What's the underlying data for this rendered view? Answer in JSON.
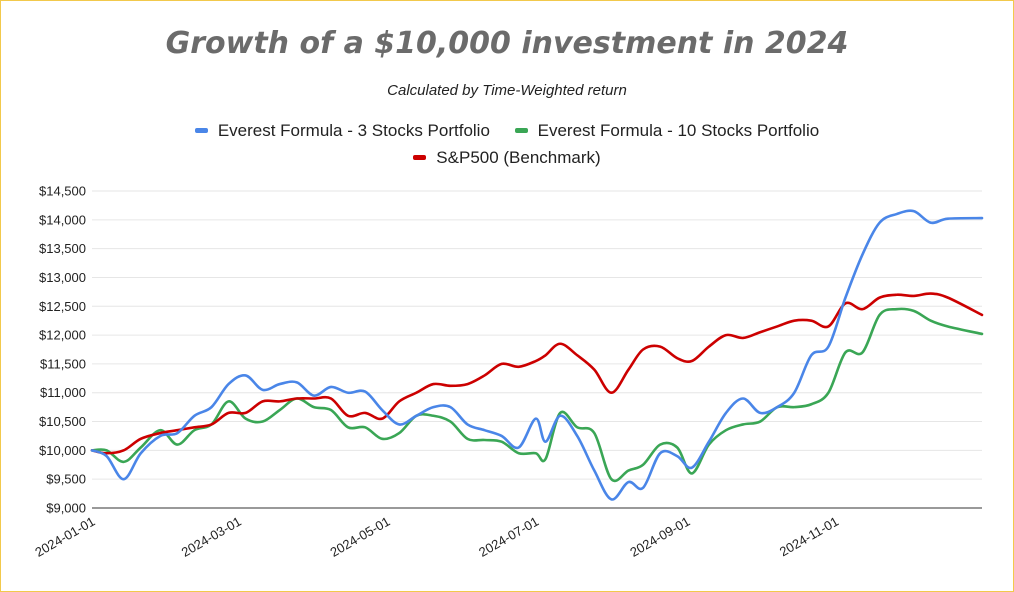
{
  "chart_data": {
    "type": "line",
    "title": "Growth of a $10,000 investment in 2024",
    "subtitle": "Calculated by Time-Weighted return",
    "xlabel": "",
    "ylabel": "",
    "ylim": [
      9000,
      14500
    ],
    "y_ticks": [
      9000,
      9500,
      10000,
      10500,
      11000,
      11500,
      12000,
      12500,
      13000,
      13500,
      14000,
      14500
    ],
    "y_tick_labels": [
      "$9,000",
      "$9,500",
      "$10,000",
      "$10,500",
      "$11,000",
      "$11,500",
      "$12,000",
      "$12,500",
      "$13,000",
      "$13,500",
      "$14,000",
      "$14,500"
    ],
    "x_range": [
      "2024-01-01",
      "2024-12-31"
    ],
    "x_ticks": [
      "2024-01-01",
      "2024-03-01",
      "2024-05-01",
      "2024-07-01",
      "2024-09-01",
      "2024-11-01"
    ],
    "grid": "horizontal",
    "legend_position": "top",
    "series": [
      {
        "name": "Everest Formula - 3 Stocks Portfolio",
        "color": "#4a86e8",
        "points": [
          [
            "2024-01-01",
            10000
          ],
          [
            "2024-01-07",
            9900
          ],
          [
            "2024-01-14",
            9500
          ],
          [
            "2024-01-21",
            9950
          ],
          [
            "2024-01-29",
            10250
          ],
          [
            "2024-02-05",
            10300
          ],
          [
            "2024-02-12",
            10600
          ],
          [
            "2024-02-19",
            10750
          ],
          [
            "2024-02-26",
            11150
          ],
          [
            "2024-03-04",
            11300
          ],
          [
            "2024-03-11",
            11050
          ],
          [
            "2024-03-18",
            11150
          ],
          [
            "2024-03-25",
            11180
          ],
          [
            "2024-04-01",
            10950
          ],
          [
            "2024-04-08",
            11100
          ],
          [
            "2024-04-15",
            11000
          ],
          [
            "2024-04-22",
            11020
          ],
          [
            "2024-04-29",
            10700
          ],
          [
            "2024-05-06",
            10450
          ],
          [
            "2024-05-13",
            10600
          ],
          [
            "2024-05-20",
            10750
          ],
          [
            "2024-05-27",
            10750
          ],
          [
            "2024-06-03",
            10450
          ],
          [
            "2024-06-10",
            10350
          ],
          [
            "2024-06-17",
            10250
          ],
          [
            "2024-06-24",
            10050
          ],
          [
            "2024-07-01",
            10550
          ],
          [
            "2024-07-05",
            10150
          ],
          [
            "2024-07-11",
            10600
          ],
          [
            "2024-07-18",
            10250
          ],
          [
            "2024-07-25",
            9650
          ],
          [
            "2024-08-01",
            9150
          ],
          [
            "2024-08-08",
            9450
          ],
          [
            "2024-08-14",
            9350
          ],
          [
            "2024-08-21",
            9950
          ],
          [
            "2024-08-28",
            9900
          ],
          [
            "2024-09-03",
            9700
          ],
          [
            "2024-09-10",
            10150
          ],
          [
            "2024-09-17",
            10650
          ],
          [
            "2024-09-24",
            10900
          ],
          [
            "2024-10-01",
            10650
          ],
          [
            "2024-10-08",
            10750
          ],
          [
            "2024-10-15",
            11000
          ],
          [
            "2024-10-22",
            11650
          ],
          [
            "2024-10-29",
            11800
          ],
          [
            "2024-11-05",
            12650
          ],
          [
            "2024-11-12",
            13400
          ],
          [
            "2024-11-19",
            13950
          ],
          [
            "2024-11-26",
            14100
          ],
          [
            "2024-12-03",
            14150
          ],
          [
            "2024-12-10",
            13950
          ],
          [
            "2024-12-17",
            14020
          ],
          [
            "2024-12-31",
            14030
          ]
        ]
      },
      {
        "name": "Everest Formula - 10 Stocks Portfolio",
        "color": "#3aa655",
        "points": [
          [
            "2024-01-01",
            10000
          ],
          [
            "2024-01-07",
            10000
          ],
          [
            "2024-01-14",
            9800
          ],
          [
            "2024-01-21",
            10050
          ],
          [
            "2024-01-29",
            10350
          ],
          [
            "2024-02-05",
            10100
          ],
          [
            "2024-02-12",
            10350
          ],
          [
            "2024-02-19",
            10450
          ],
          [
            "2024-02-26",
            10850
          ],
          [
            "2024-03-04",
            10550
          ],
          [
            "2024-03-11",
            10500
          ],
          [
            "2024-03-18",
            10700
          ],
          [
            "2024-03-25",
            10900
          ],
          [
            "2024-04-01",
            10750
          ],
          [
            "2024-04-08",
            10700
          ],
          [
            "2024-04-15",
            10400
          ],
          [
            "2024-04-22",
            10400
          ],
          [
            "2024-04-29",
            10200
          ],
          [
            "2024-05-06",
            10300
          ],
          [
            "2024-05-13",
            10600
          ],
          [
            "2024-05-20",
            10600
          ],
          [
            "2024-05-27",
            10500
          ],
          [
            "2024-06-03",
            10200
          ],
          [
            "2024-06-10",
            10180
          ],
          [
            "2024-06-17",
            10150
          ],
          [
            "2024-06-24",
            9950
          ],
          [
            "2024-07-01",
            9950
          ],
          [
            "2024-07-05",
            9850
          ],
          [
            "2024-07-11",
            10650
          ],
          [
            "2024-07-18",
            10400
          ],
          [
            "2024-07-25",
            10300
          ],
          [
            "2024-08-01",
            9500
          ],
          [
            "2024-08-08",
            9650
          ],
          [
            "2024-08-14",
            9750
          ],
          [
            "2024-08-21",
            10100
          ],
          [
            "2024-08-28",
            10050
          ],
          [
            "2024-09-03",
            9600
          ],
          [
            "2024-09-10",
            10100
          ],
          [
            "2024-09-17",
            10350
          ],
          [
            "2024-09-24",
            10450
          ],
          [
            "2024-10-01",
            10500
          ],
          [
            "2024-10-08",
            10750
          ],
          [
            "2024-10-15",
            10750
          ],
          [
            "2024-10-22",
            10800
          ],
          [
            "2024-10-29",
            11000
          ],
          [
            "2024-11-05",
            11700
          ],
          [
            "2024-11-12",
            11700
          ],
          [
            "2024-11-19",
            12350
          ],
          [
            "2024-11-26",
            12450
          ],
          [
            "2024-12-03",
            12420
          ],
          [
            "2024-12-10",
            12250
          ],
          [
            "2024-12-17",
            12150
          ],
          [
            "2024-12-31",
            12020
          ]
        ]
      },
      {
        "name": "S&P500 (Benchmark)",
        "color": "#cc0000",
        "points": [
          [
            "2024-01-01",
            10000
          ],
          [
            "2024-01-07",
            9950
          ],
          [
            "2024-01-14",
            10000
          ],
          [
            "2024-01-21",
            10200
          ],
          [
            "2024-01-29",
            10300
          ],
          [
            "2024-02-05",
            10350
          ],
          [
            "2024-02-12",
            10400
          ],
          [
            "2024-02-19",
            10450
          ],
          [
            "2024-02-26",
            10650
          ],
          [
            "2024-03-04",
            10650
          ],
          [
            "2024-03-11",
            10850
          ],
          [
            "2024-03-18",
            10850
          ],
          [
            "2024-03-25",
            10900
          ],
          [
            "2024-04-01",
            10900
          ],
          [
            "2024-04-08",
            10900
          ],
          [
            "2024-04-15",
            10600
          ],
          [
            "2024-04-22",
            10650
          ],
          [
            "2024-04-29",
            10550
          ],
          [
            "2024-05-06",
            10850
          ],
          [
            "2024-05-13",
            11000
          ],
          [
            "2024-05-20",
            11150
          ],
          [
            "2024-05-27",
            11120
          ],
          [
            "2024-06-03",
            11150
          ],
          [
            "2024-06-10",
            11300
          ],
          [
            "2024-06-17",
            11500
          ],
          [
            "2024-06-24",
            11450
          ],
          [
            "2024-07-01",
            11550
          ],
          [
            "2024-07-05",
            11650
          ],
          [
            "2024-07-11",
            11850
          ],
          [
            "2024-07-18",
            11650
          ],
          [
            "2024-07-25",
            11400
          ],
          [
            "2024-08-01",
            11000
          ],
          [
            "2024-08-08",
            11400
          ],
          [
            "2024-08-14",
            11750
          ],
          [
            "2024-08-21",
            11800
          ],
          [
            "2024-08-28",
            11600
          ],
          [
            "2024-09-03",
            11550
          ],
          [
            "2024-09-10",
            11800
          ],
          [
            "2024-09-17",
            12000
          ],
          [
            "2024-09-24",
            11950
          ],
          [
            "2024-10-01",
            12050
          ],
          [
            "2024-10-08",
            12150
          ],
          [
            "2024-10-15",
            12250
          ],
          [
            "2024-10-22",
            12250
          ],
          [
            "2024-10-29",
            12150
          ],
          [
            "2024-11-05",
            12550
          ],
          [
            "2024-11-12",
            12450
          ],
          [
            "2024-11-19",
            12650
          ],
          [
            "2024-11-26",
            12700
          ],
          [
            "2024-12-03",
            12680
          ],
          [
            "2024-12-10",
            12720
          ],
          [
            "2024-12-17",
            12650
          ],
          [
            "2024-12-31",
            12350
          ]
        ]
      }
    ]
  }
}
